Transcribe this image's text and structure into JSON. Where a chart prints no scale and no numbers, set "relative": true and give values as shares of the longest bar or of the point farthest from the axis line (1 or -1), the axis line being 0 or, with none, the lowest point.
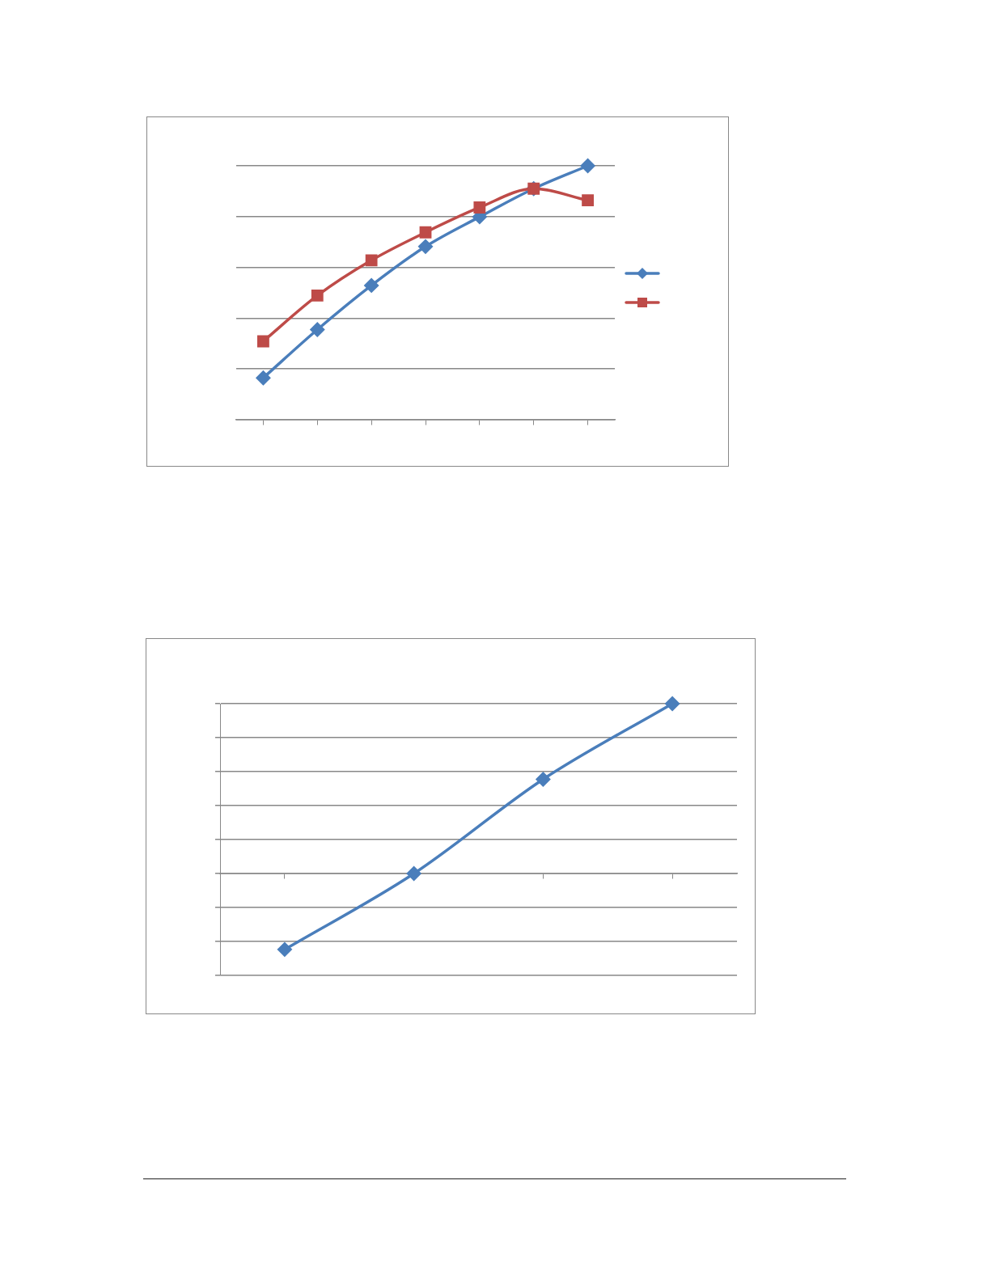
{
  "chart_data": [
    {
      "type": "line",
      "relative": true,
      "categories": [
        null,
        null,
        null,
        null,
        null,
        null,
        null
      ],
      "grid": "y",
      "series": [
        {
          "color": "#4a7ebb",
          "marker": "diamond",
          "values": [
            0.165,
            0.355,
            0.529,
            0.682,
            0.799,
            0.91,
            1
          ]
        },
        {
          "color": "#be4b48",
          "marker": "square",
          "values": [
            0.309,
            0.489,
            0.628,
            0.738,
            0.836,
            0.91,
            0.864
          ]
        }
      ]
    },
    {
      "type": "line",
      "relative": true,
      "categories": [
        null,
        null,
        null,
        null
      ],
      "grid": "y",
      "marker": "diamond",
      "series": [
        {
          "color": "#4a7ebb",
          "values": [
            -0.447,
            0,
            0.555,
            1
          ]
        }
      ]
    }
  ]
}
